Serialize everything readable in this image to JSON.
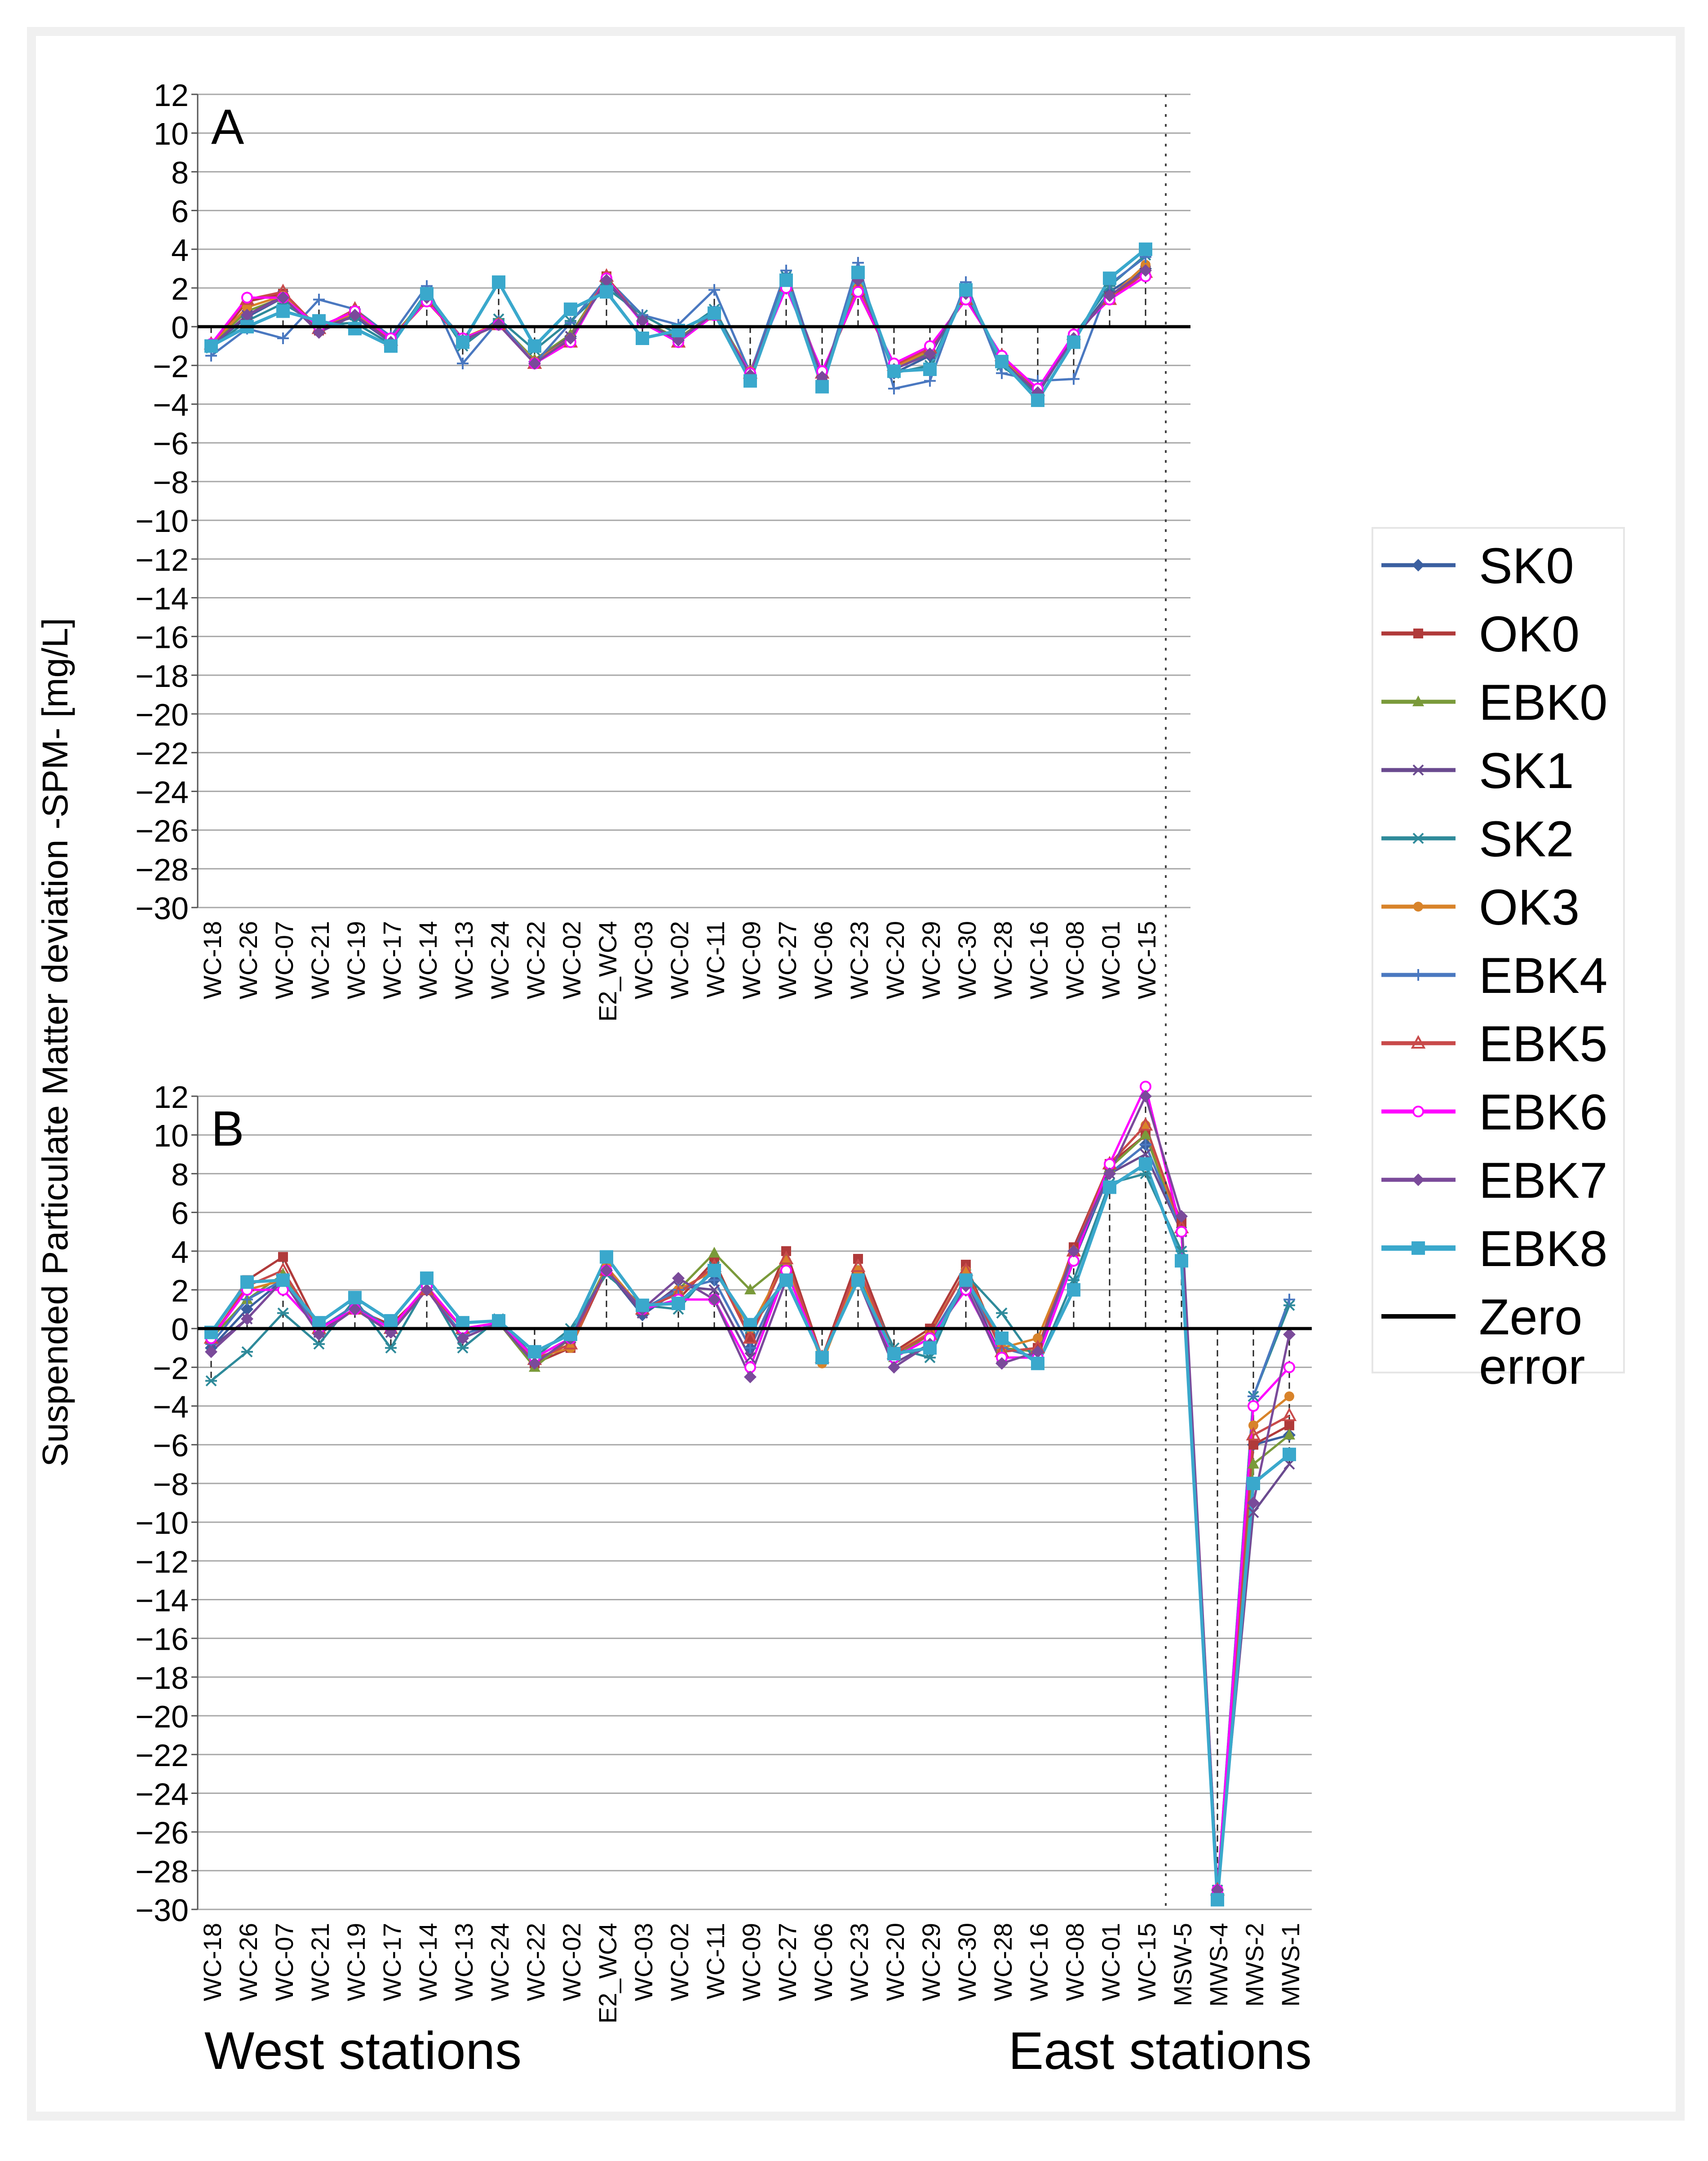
{
  "figure": {
    "y_axis_label": "Suspended Particulate Matter deviation -SPM- [mg/L]",
    "west_label": "West stations",
    "east_label": "East stations"
  },
  "legend": {
    "zero_label_line1": "Zero",
    "zero_label_line2": "error"
  },
  "colors": {
    "SK0": "#3a5fa0",
    "OK0": "#b03a3a",
    "EBK0": "#7a9a3a",
    "SK1": "#6a4a8f",
    "SK2": "#2e8a9a",
    "OK3": "#d8832a",
    "EBK4": "#4a78c0",
    "EBK5": "#c84a4a",
    "EBK6": "#ff00ff",
    "EBK7": "#7a4a9a",
    "EBK8": "#3aa8cc",
    "zero": "#000000"
  },
  "chart_data": [
    {
      "panel": "A",
      "type": "line",
      "ylim": [
        -30,
        12
      ],
      "yticks": [
        12,
        10,
        8,
        6,
        4,
        2,
        0,
        -2,
        -4,
        -6,
        -8,
        -10,
        -12,
        -14,
        -16,
        -18,
        -20,
        -22,
        -24,
        -26,
        -28,
        -30
      ],
      "ylabel": "Suspended Particulate Matter deviation -SPM- [mg/L]",
      "categories": [
        "WC-18",
        "WC-26",
        "WC-07",
        "WC-21",
        "WC-19",
        "WC-17",
        "WC-14",
        "WC-13",
        "WC-24",
        "WC-22",
        "WC-02",
        "E2_WC4",
        "WC-03",
        "WC-02",
        "WC-11",
        "WC-09",
        "WC-27",
        "WC-06",
        "WC-23",
        "WC-20",
        "WC-29",
        "WC-30",
        "WC-28",
        "WC-16",
        "WC-08",
        "WC-01",
        "WC-15"
      ],
      "series": [
        {
          "name": "SK0",
          "values": [
            -1.0,
            0.5,
            1.5,
            0.0,
            0.5,
            -0.8,
            1.6,
            -0.8,
            0.2,
            -1.8,
            -0.5,
            2.3,
            0.3,
            -0.7,
            0.8,
            -2.4,
            2.4,
            -2.6,
            2.6,
            -2.4,
            -1.5,
            1.8,
            -1.8,
            -3.4,
            -0.6,
            1.8,
            3.0
          ]
        },
        {
          "name": "OK0",
          "values": [
            -1.0,
            1.3,
            1.7,
            -0.2,
            0.8,
            -0.7,
            1.4,
            -0.7,
            0.1,
            -1.9,
            -0.7,
            2.6,
            0.2,
            -0.8,
            0.6,
            -2.4,
            2.1,
            -2.4,
            1.8,
            -2.0,
            -1.2,
            1.5,
            -1.6,
            -3.3,
            -0.5,
            1.5,
            2.8
          ]
        },
        {
          "name": "EBK0",
          "values": [
            -0.9,
            0.8,
            1.5,
            0.0,
            0.6,
            -0.6,
            1.5,
            -0.6,
            0.2,
            -1.7,
            -0.4,
            2.5,
            0.3,
            -0.6,
            0.7,
            -2.3,
            2.3,
            -2.4,
            2.2,
            -2.1,
            -1.3,
            1.6,
            -1.7,
            -3.3,
            -0.5,
            1.6,
            2.9
          ]
        },
        {
          "name": "SK1",
          "values": [
            -1.0,
            0.6,
            1.6,
            -0.1,
            0.6,
            -0.7,
            1.5,
            -0.6,
            0.1,
            -1.8,
            -0.5,
            2.4,
            0.3,
            -0.7,
            0.7,
            -2.5,
            2.5,
            -2.5,
            2.3,
            -2.2,
            -1.4,
            1.7,
            -1.7,
            -3.4,
            -0.5,
            1.6,
            2.9
          ]
        },
        {
          "name": "SK2",
          "values": [
            -1.1,
            0.3,
            1.2,
            0.1,
            0.2,
            -0.9,
            1.8,
            -1.0,
            0.4,
            -1.2,
            0.3,
            2.0,
            0.6,
            -0.4,
            0.9,
            -2.5,
            2.6,
            -2.8,
            2.8,
            -2.4,
            -2.0,
            2.0,
            -2.0,
            -3.5,
            -0.5,
            2.1,
            3.7
          ]
        },
        {
          "name": "OK3",
          "values": [
            -0.9,
            1.0,
            1.6,
            0.0,
            0.7,
            -0.6,
            1.4,
            -0.6,
            0.2,
            -1.8,
            -0.6,
            2.6,
            0.2,
            -0.7,
            0.6,
            -2.3,
            2.2,
            -2.4,
            2.0,
            -2.1,
            -1.2,
            1.5,
            -1.6,
            -3.3,
            -0.5,
            1.5,
            3.2
          ]
        },
        {
          "name": "EBK4",
          "values": [
            -1.5,
            -0.1,
            -0.6,
            1.4,
            0.9,
            -0.5,
            2.1,
            -1.9,
            0.3,
            -1.9,
            0.2,
            2.5,
            0.6,
            0.1,
            1.9,
            -2.4,
            2.9,
            -2.9,
            3.3,
            -3.2,
            -2.8,
            2.3,
            -2.4,
            -2.8,
            -2.7,
            2.2,
            3.6
          ]
        },
        {
          "name": "EBK5",
          "values": [
            -0.9,
            1.4,
            1.8,
            -0.1,
            0.9,
            -0.7,
            1.3,
            -0.7,
            0.1,
            -1.9,
            -0.8,
            2.6,
            0.2,
            -0.8,
            0.6,
            -2.4,
            2.1,
            -2.4,
            1.9,
            -2.0,
            -1.1,
            1.4,
            -1.5,
            -3.3,
            -0.4,
            1.4,
            2.8
          ]
        },
        {
          "name": "EBK6",
          "values": [
            -0.9,
            1.5,
            1.5,
            0.0,
            0.8,
            -0.6,
            1.3,
            -0.6,
            0.1,
            -1.9,
            -0.8,
            2.5,
            0.2,
            -0.8,
            0.6,
            -2.4,
            2.0,
            -2.3,
            1.8,
            -1.9,
            -1.0,
            1.4,
            -1.5,
            -3.2,
            -0.4,
            1.4,
            2.6
          ]
        },
        {
          "name": "EBK7",
          "values": [
            -1.0,
            0.6,
            1.5,
            -0.3,
            0.6,
            -0.8,
            1.5,
            -0.7,
            0.1,
            -1.9,
            -0.6,
            2.4,
            0.3,
            -0.7,
            0.7,
            -2.5,
            2.4,
            -2.6,
            2.4,
            -2.2,
            -1.4,
            1.7,
            -1.8,
            -3.4,
            -0.6,
            1.6,
            2.9
          ]
        },
        {
          "name": "EBK8",
          "values": [
            -1.0,
            0.0,
            0.8,
            0.3,
            -0.1,
            -1.0,
            1.7,
            -0.8,
            2.3,
            -1.0,
            0.9,
            1.8,
            -0.6,
            -0.2,
            0.7,
            -2.8,
            2.4,
            -3.1,
            2.8,
            -2.3,
            -2.2,
            1.9,
            -1.8,
            -3.8,
            -0.8,
            2.5,
            4.0
          ]
        }
      ]
    },
    {
      "panel": "B",
      "type": "line",
      "ylim": [
        -30,
        12
      ],
      "yticks": [
        12,
        10,
        8,
        6,
        4,
        2,
        0,
        -2,
        -4,
        -6,
        -8,
        -10,
        -12,
        -14,
        -16,
        -18,
        -20,
        -22,
        -24,
        -26,
        -28,
        -30
      ],
      "ylabel": "Suspended Particulate Matter deviation -SPM- [mg/L]",
      "categories": [
        "WC-18",
        "WC-26",
        "WC-07",
        "WC-21",
        "WC-19",
        "WC-17",
        "WC-14",
        "WC-13",
        "WC-24",
        "WC-22",
        "WC-02",
        "E2_WC4",
        "WC-03",
        "WC-02",
        "WC-11",
        "WC-09",
        "WC-27",
        "WC-06",
        "WC-23",
        "WC-20",
        "WC-29",
        "WC-30",
        "WC-28",
        "WC-16",
        "WC-08",
        "WC-01",
        "WC-15",
        "MSW-5",
        "MWS-4",
        "MWS-2",
        "MWS-1"
      ],
      "series": [
        {
          "name": "SK0",
          "values": [
            -1.0,
            1.0,
            2.5,
            0.0,
            1.0,
            0.0,
            2.0,
            0.0,
            0.3,
            -1.5,
            -0.5,
            3.0,
            0.7,
            2.0,
            2.5,
            -1.0,
            3.0,
            -1.5,
            2.5,
            -1.5,
            -0.5,
            2.5,
            -1.0,
            -1.5,
            3.5,
            8.0,
            9.5,
            5.0,
            -29.0,
            -6.0,
            -5.5
          ]
        },
        {
          "name": "OK0",
          "values": [
            -0.3,
            2.5,
            3.7,
            0.0,
            1.0,
            0.2,
            2.0,
            0.0,
            0.3,
            -1.8,
            -1.0,
            3.0,
            1.0,
            1.5,
            3.5,
            -0.5,
            4.0,
            -1.5,
            3.6,
            -1.2,
            0.0,
            3.3,
            -1.2,
            -1.0,
            4.2,
            8.5,
            10.0,
            5.5,
            -29.0,
            -6.0,
            -5.0
          ]
        },
        {
          "name": "EBK0",
          "values": [
            -0.5,
            1.5,
            2.8,
            0.0,
            1.2,
            0.0,
            2.0,
            0.0,
            0.3,
            -2.0,
            -0.5,
            3.2,
            1.0,
            2.0,
            3.9,
            2.0,
            3.5,
            -1.5,
            3.0,
            -1.5,
            -0.3,
            3.0,
            -1.0,
            -1.2,
            4.0,
            8.3,
            10.0,
            5.0,
            -29.0,
            -7.0,
            -5.5
          ]
        },
        {
          "name": "SK1",
          "values": [
            -1.0,
            0.5,
            2.5,
            -0.2,
            1.0,
            -0.2,
            2.0,
            -0.5,
            0.3,
            -1.5,
            -0.5,
            3.0,
            0.8,
            2.2,
            2.0,
            -1.5,
            3.0,
            -1.5,
            2.5,
            -1.8,
            -0.8,
            2.5,
            -1.5,
            -1.5,
            3.8,
            8.0,
            9.0,
            5.0,
            -29.0,
            -9.5,
            -7.0
          ]
        },
        {
          "name": "SK2",
          "values": [
            -2.7,
            -1.2,
            0.8,
            -0.8,
            1.5,
            -1.0,
            2.2,
            -1.0,
            0.5,
            -1.5,
            0.0,
            2.8,
            1.2,
            1.0,
            3.2,
            0.0,
            2.5,
            -1.5,
            2.8,
            -1.0,
            -1.5,
            2.8,
            0.8,
            -1.8,
            2.5,
            7.5,
            8.0,
            4.0,
            -29.0,
            -3.5,
            1.2
          ]
        },
        {
          "name": "OK3",
          "values": [
            -0.5,
            2.0,
            2.5,
            0.0,
            1.0,
            0.0,
            2.0,
            0.0,
            0.3,
            -1.5,
            -1.0,
            3.2,
            1.0,
            2.0,
            3.0,
            0.0,
            3.5,
            -1.8,
            3.0,
            -1.3,
            -0.2,
            3.0,
            -1.0,
            -0.5,
            4.0,
            8.5,
            10.5,
            5.0,
            -29.0,
            -5.0,
            -3.5
          ]
        },
        {
          "name": "EBK4",
          "values": [
            -0.8,
            1.5,
            2.5,
            0.0,
            1.2,
            0.0,
            2.0,
            -0.3,
            0.3,
            -1.5,
            -0.5,
            3.0,
            1.0,
            2.0,
            2.5,
            -1.0,
            3.0,
            -1.5,
            2.5,
            -1.5,
            -0.5,
            2.5,
            -1.0,
            -1.5,
            3.8,
            8.0,
            9.5,
            5.0,
            -29.0,
            -3.5,
            1.5
          ]
        },
        {
          "name": "EBK5",
          "values": [
            -0.5,
            2.2,
            3.0,
            0.0,
            1.0,
            0.0,
            2.0,
            0.0,
            0.3,
            -1.6,
            -0.8,
            3.0,
            1.0,
            1.8,
            3.2,
            -0.5,
            3.6,
            -1.5,
            3.2,
            -1.3,
            -0.3,
            3.0,
            -1.2,
            -1.0,
            4.0,
            8.5,
            10.5,
            5.2,
            -29.0,
            -5.5,
            -4.5
          ]
        },
        {
          "name": "EBK6",
          "values": [
            -0.5,
            2.0,
            2.0,
            0.0,
            1.0,
            0.0,
            2.2,
            0.0,
            0.3,
            -1.5,
            -0.5,
            3.0,
            1.0,
            1.5,
            1.5,
            -2.0,
            3.0,
            -1.5,
            2.5,
            -1.5,
            -0.5,
            2.0,
            -1.5,
            -1.5,
            3.5,
            8.5,
            12.5,
            5.0,
            -29.0,
            -4.0,
            -2.0
          ]
        },
        {
          "name": "EBK7",
          "values": [
            -1.2,
            0.5,
            2.5,
            -0.3,
            1.0,
            -0.2,
            2.0,
            -0.5,
            0.3,
            -1.8,
            -0.5,
            3.0,
            1.0,
            2.6,
            1.5,
            -2.5,
            2.5,
            -1.5,
            2.5,
            -2.0,
            -0.8,
            2.2,
            -1.8,
            -1.2,
            4.0,
            8.0,
            12.0,
            5.8,
            -29.0,
            -9.0,
            -0.3
          ]
        },
        {
          "name": "EBK8",
          "values": [
            -0.2,
            2.4,
            2.5,
            0.3,
            1.6,
            0.4,
            2.6,
            0.3,
            0.4,
            -1.2,
            -0.3,
            3.7,
            1.2,
            1.3,
            3.0,
            0.2,
            2.5,
            -1.5,
            2.5,
            -1.3,
            -1.0,
            2.5,
            -0.5,
            -1.8,
            2.0,
            7.3,
            8.5,
            3.5,
            -29.5,
            -8.0,
            -6.5
          ]
        }
      ]
    }
  ]
}
